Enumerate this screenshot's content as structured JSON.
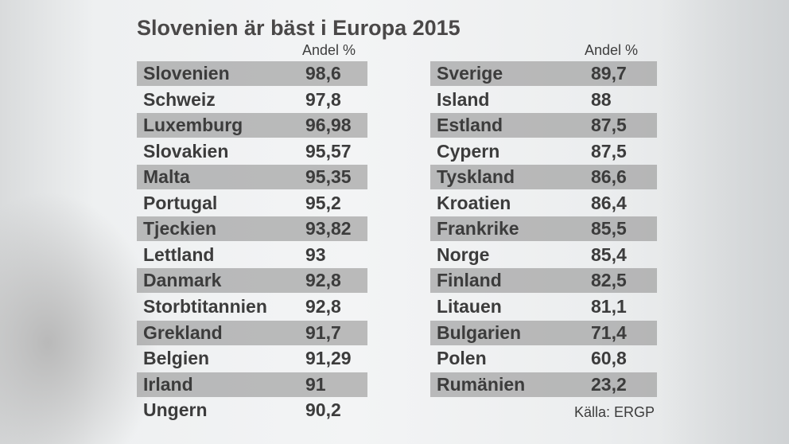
{
  "title": "Slovenien är bäst i Europa 2015",
  "tables": [
    {
      "header": "Andel %",
      "rows": [
        [
          "Slovenien",
          "98,6"
        ],
        [
          "Schweiz",
          "97,8"
        ],
        [
          "Luxemburg",
          "96,98"
        ],
        [
          "Slovakien",
          "95,57"
        ],
        [
          "Malta",
          "95,35"
        ],
        [
          "Portugal",
          "95,2"
        ],
        [
          "Tjeckien",
          "93,82"
        ],
        [
          "Lettland",
          "93"
        ],
        [
          "Danmark",
          "92,8"
        ],
        [
          "Storbtitannien",
          "92,8"
        ],
        [
          "Grekland",
          "91,7"
        ],
        [
          "Belgien",
          "91,29"
        ],
        [
          "Irland",
          "91"
        ],
        [
          "Ungern",
          "90,2"
        ]
      ]
    },
    {
      "header": "Andel %",
      "rows": [
        [
          "Sverige",
          "89,7"
        ],
        [
          "Island",
          "88"
        ],
        [
          "Estland",
          "87,5"
        ],
        [
          "Cypern",
          "87,5"
        ],
        [
          "Tyskland",
          "86,6"
        ],
        [
          "Kroatien",
          "86,4"
        ],
        [
          "Frankrike",
          "85,5"
        ],
        [
          "Norge",
          "85,4"
        ],
        [
          "Finland",
          "82,5"
        ],
        [
          "Litauen",
          "81,1"
        ],
        [
          "Bulgarien",
          "71,4"
        ],
        [
          "Polen",
          "60,8"
        ],
        [
          "Rumänien",
          "23,2"
        ]
      ]
    }
  ],
  "source": "Källa: ERGP"
}
